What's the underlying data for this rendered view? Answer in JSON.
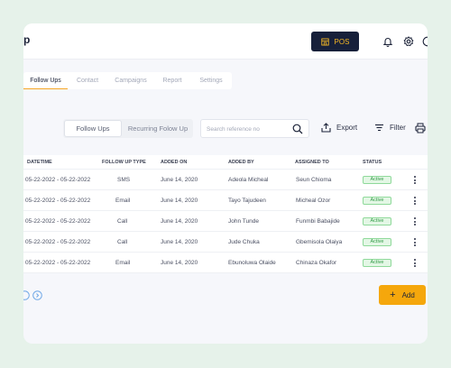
{
  "header": {
    "logo_text": "p",
    "pos_label": "POS",
    "icons": [
      "bell-icon",
      "gear-icon",
      "user-icon"
    ]
  },
  "tabs": [
    {
      "label": "Follow Ups",
      "active": true
    },
    {
      "label": "Contact",
      "active": false
    },
    {
      "label": "Campaigns",
      "active": false
    },
    {
      "label": "Report",
      "active": false
    },
    {
      "label": "Settings",
      "active": false
    }
  ],
  "filters": {
    "segment": [
      "Follow Ups",
      "Recurring Folow Up"
    ],
    "search_placeholder": "Search reference no",
    "export_label": "Export",
    "filter_label": "Filter"
  },
  "table": {
    "columns": [
      "DATETIME",
      "FOLLOW UP TYPE",
      "ADDED ON",
      "ADDED BY",
      "ASSIGNED TO",
      "STATUS"
    ],
    "rows": [
      {
        "datetime": "05-22-2022 - 05-22-2022",
        "type": "SMS",
        "added_on": "June 14, 2020",
        "added_by": "Adeola Micheal",
        "assigned_to": "Seun Chioma",
        "status": "Active"
      },
      {
        "datetime": "05-22-2022 - 05-22-2022",
        "type": "Email",
        "added_on": "June 14, 2020",
        "added_by": "Tayo Tajudeen",
        "assigned_to": "Micheal Ozor",
        "status": "Active"
      },
      {
        "datetime": "05-22-2022 - 05-22-2022",
        "type": "Call",
        "added_on": "June 14, 2020",
        "added_by": "John Tunde",
        "assigned_to": "Funmbi Babajide",
        "status": "Active"
      },
      {
        "datetime": "05-22-2022 - 05-22-2022",
        "type": "Call",
        "added_on": "June 14, 2020",
        "added_by": "Jude Chuka",
        "assigned_to": "Gbemisola Olaiya",
        "status": "Active"
      },
      {
        "datetime": "05-22-2022 - 05-22-2022",
        "type": "Email",
        "added_on": "June 14, 2020",
        "added_by": "Ebunoluwa Olaide",
        "assigned_to": "Chinaza Okafor",
        "status": "Active"
      }
    ]
  },
  "add_label": "Add",
  "colors": {
    "accent": "#f5a70c",
    "dark": "#17203a",
    "active_status": "#2f9a44"
  }
}
